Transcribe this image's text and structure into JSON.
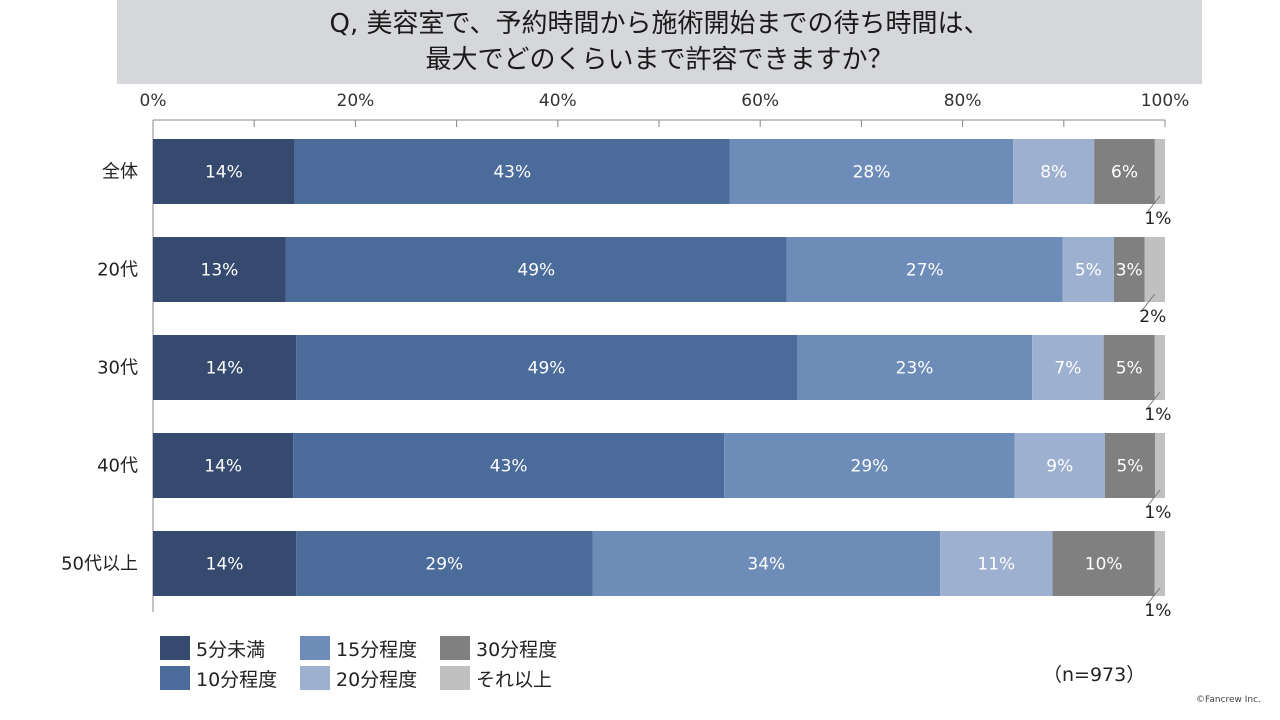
{
  "title": {
    "line1": "Q, 美容室で、予約時間から施術開始までの待ち時間は、",
    "line2": "最大でどのくらいまで許容できますか？"
  },
  "sample_note": "（n=973）",
  "copyright": "©Fancrew Inc.",
  "chart_data": {
    "type": "bar",
    "orientation": "horizontal",
    "stacked": "percent",
    "categories": [
      "全体",
      "20代",
      "30代",
      "40代",
      "50代以上"
    ],
    "series": [
      {
        "name": "5分未満",
        "color": "#354a6e",
        "values": [
          14,
          13,
          14,
          14,
          14
        ],
        "labels": [
          "14%",
          "13%",
          "14%",
          "14%",
          "14%"
        ]
      },
      {
        "name": "10分程度",
        "color": "#4b6b9b",
        "values": [
          43,
          49,
          49,
          43,
          29
        ],
        "labels": [
          "43%",
          "49%",
          "49%",
          "43%",
          "29%"
        ]
      },
      {
        "name": "15分程度",
        "color": "#6d8cb8",
        "values": [
          28,
          27,
          23,
          29,
          34
        ],
        "labels": [
          "28%",
          "27%",
          "23%",
          "29%",
          "34%"
        ]
      },
      {
        "name": "20分程度",
        "color": "#9eb0cf",
        "values": [
          8,
          5,
          7,
          9,
          11
        ],
        "labels": [
          "8%",
          "5%",
          "7%",
          "9%",
          "11%"
        ]
      },
      {
        "name": "30分程度",
        "color": "#808080",
        "values": [
          6,
          3,
          5,
          5,
          10
        ],
        "labels": [
          "6%",
          "3%",
          "5%",
          "5%",
          "10%"
        ]
      },
      {
        "name": "それ以上",
        "color": "#c0c0c0",
        "values": [
          1,
          2,
          1,
          1,
          1
        ],
        "labels": [
          "1%",
          "2%",
          "1%",
          "1%",
          "1%"
        ]
      }
    ],
    "xlim": [
      0,
      100
    ],
    "xticks": [
      0,
      20,
      40,
      60,
      80,
      100
    ],
    "xtick_labels": [
      "0%",
      "20%",
      "40%",
      "60%",
      "80%",
      "100%"
    ],
    "legend_position": "bottom-left",
    "grid": false
  }
}
